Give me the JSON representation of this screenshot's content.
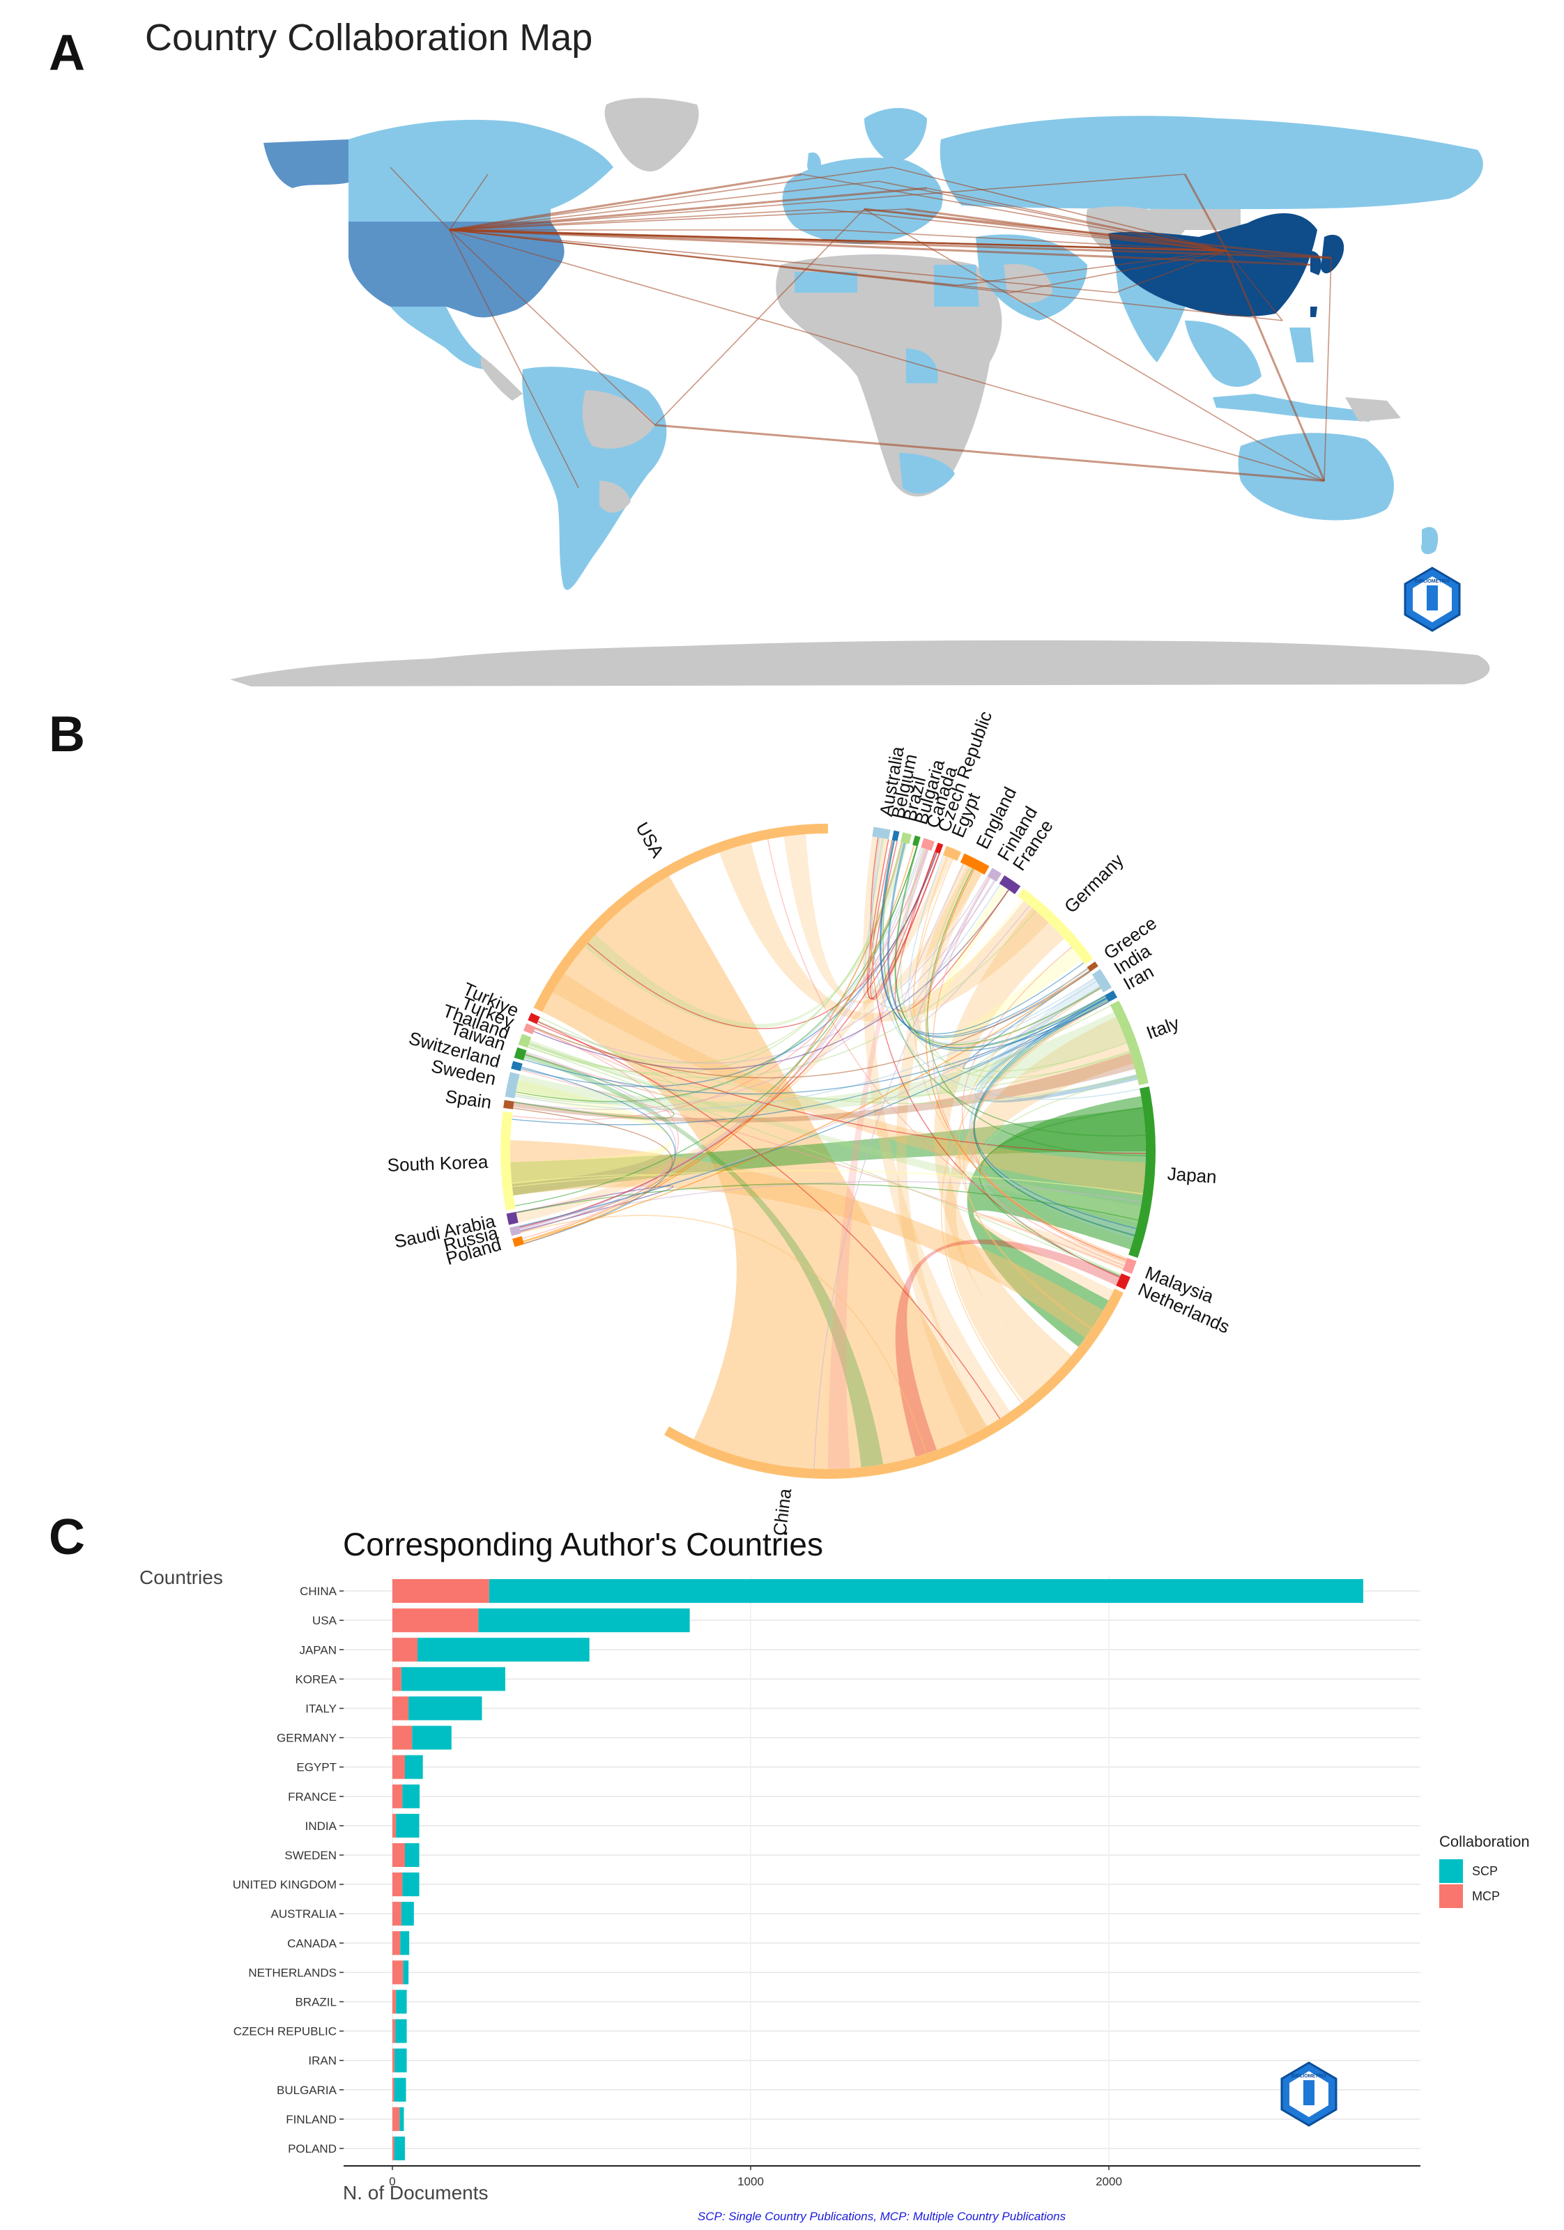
{
  "panels": {
    "a": "A",
    "b": "B",
    "c": "C"
  },
  "map": {
    "title": "Country Collaboration Map",
    "logo_text": "BIBLIOMETRIX"
  },
  "chord": {
    "labels": [
      "Australia",
      "Belgium",
      "Brazil",
      "Bulgaria",
      "Canada",
      "Czech Republic",
      "Egypt",
      "England",
      "Finland",
      "France",
      "Germany",
      "Greece",
      "India",
      "Iran",
      "Italy",
      "Japan",
      "Malaysia",
      "Netherlands",
      "China",
      "Poland",
      "Russia",
      "Saudi Arabia",
      "South Korea",
      "Spain",
      "Sweden",
      "Switzerland",
      "Taiwan",
      "Thailand",
      "Turkey",
      "Turkiye",
      "USA"
    ],
    "colors": {
      "Australia": "#a6cee3",
      "Belgium": "#1f78b4",
      "Brazil": "#b2df8a",
      "Bulgaria": "#33a02c",
      "Canada": "#fb9a99",
      "Czech Republic": "#e31a1c",
      "Egypt": "#fdbf6f",
      "England": "#ff7f00",
      "Finland": "#cab2d6",
      "France": "#6a3d9a",
      "Germany": "#ffff99",
      "Greece": "#b15928",
      "India": "#a6cee3",
      "Iran": "#1f78b4",
      "Italy": "#b2df8a",
      "Japan": "#33a02c",
      "Malaysia": "#fb9a99",
      "Netherlands": "#e31a1c",
      "China": "#fdbf6f",
      "Poland": "#ff7f00",
      "Russia": "#cab2d6",
      "Saudi Arabia": "#6a3d9a",
      "South Korea": "#ffff99",
      "Spain": "#b15928",
      "Sweden": "#a6cee3",
      "Switzerland": "#1f78b4",
      "Taiwan": "#33a02c",
      "Thailand": "#b2df8a",
      "Turkey": "#fb9a99",
      "Turkiye": "#e31a1c",
      "USA": "#fdbf6f"
    }
  },
  "chart_data": [
    {
      "type": "map",
      "title": "Country Collaboration Map",
      "top_collaborators": [
        "China",
        "USA"
      ]
    },
    {
      "type": "chord",
      "nodes": [
        "Australia",
        "Belgium",
        "Brazil",
        "Bulgaria",
        "Canada",
        "Czech Republic",
        "Egypt",
        "England",
        "Finland",
        "France",
        "Germany",
        "Greece",
        "India",
        "Iran",
        "Italy",
        "Japan",
        "Malaysia",
        "Netherlands",
        "China",
        "Poland",
        "Russia",
        "Saudi Arabia",
        "South Korea",
        "Spain",
        "Sweden",
        "Switzerland",
        "Taiwan",
        "Thailand",
        "Turkey",
        "Turkiye",
        "USA"
      ]
    },
    {
      "type": "bar",
      "stacked": true,
      "orientation": "horizontal",
      "title": "Corresponding Author's Countries",
      "xlabel": "N. of Documents",
      "ylabel": "Countries",
      "xlim": [
        0,
        2850
      ],
      "xticks": [
        0,
        1000,
        2000
      ],
      "categories": [
        "CHINA",
        "USA",
        "JAPAN",
        "KOREA",
        "ITALY",
        "GERMANY",
        "EGYPT",
        "FRANCE",
        "INDIA",
        "SWEDEN",
        "UNITED KINGDOM",
        "AUSTRALIA",
        "CANADA",
        "NETHERLANDS",
        "BRAZIL",
        "CZECH REPUBLIC",
        "IRAN",
        "BULGARIA",
        "FINLAND",
        "POLAND"
      ],
      "series": [
        {
          "name": "MCP",
          "color": "#f8766d",
          "values": [
            270,
            240,
            70,
            25,
            45,
            55,
            35,
            28,
            10,
            35,
            28,
            25,
            22,
            30,
            10,
            8,
            6,
            5,
            20,
            5
          ]
        },
        {
          "name": "SCP",
          "color": "#00bfc4",
          "values": [
            2440,
            590,
            480,
            290,
            205,
            110,
            50,
            48,
            65,
            40,
            47,
            35,
            25,
            15,
            30,
            32,
            34,
            33,
            12,
            30
          ]
        }
      ],
      "legend": {
        "title": "Collaboration",
        "position": "right",
        "order": [
          "SCP",
          "MCP"
        ]
      },
      "caption": "SCP: Single Country Publications, MCP: Multiple Country Publications"
    }
  ]
}
